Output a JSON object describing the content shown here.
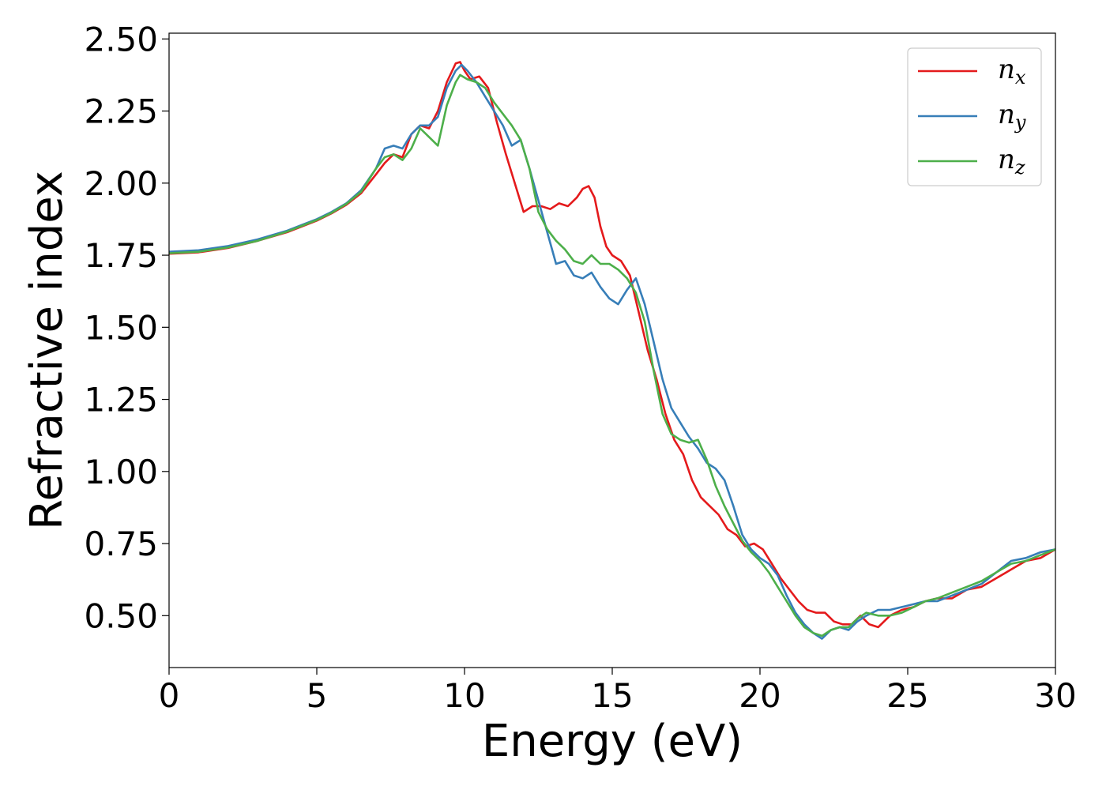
{
  "chart_data": {
    "type": "line",
    "xlabel": "Energy (eV)",
    "ylabel": "Refractive index",
    "xlim": [
      0,
      30
    ],
    "ylim": [
      0.32,
      2.52
    ],
    "xticks": [
      0,
      5,
      10,
      15,
      20,
      25,
      30
    ],
    "xtick_labels": [
      "0",
      "5",
      "10",
      "15",
      "20",
      "25",
      "30"
    ],
    "yticks": [
      0.5,
      0.75,
      1.0,
      1.25,
      1.5,
      1.75,
      2.0,
      2.25,
      2.5
    ],
    "ytick_labels": [
      "0.50",
      "0.75",
      "1.00",
      "1.25",
      "1.50",
      "1.75",
      "2.00",
      "2.25",
      "2.50"
    ],
    "grid": false,
    "legend_position": "top-right",
    "series": [
      {
        "name": "n_x",
        "legend_base": "n",
        "legend_sub": "x",
        "color": "#e41a1c",
        "x": [
          0,
          1,
          2,
          3,
          4,
          5,
          5.5,
          6,
          6.5,
          7,
          7.3,
          7.6,
          7.9,
          8.2,
          8.5,
          8.8,
          9.1,
          9.4,
          9.7,
          9.85,
          10.0,
          10.2,
          10.5,
          10.8,
          11.1,
          11.4,
          11.7,
          12.0,
          12.3,
          12.6,
          12.9,
          13.2,
          13.5,
          13.8,
          14.0,
          14.2,
          14.4,
          14.6,
          14.8,
          15.0,
          15.3,
          15.6,
          15.9,
          16.2,
          16.5,
          16.8,
          17.1,
          17.4,
          17.7,
          18.0,
          18.3,
          18.6,
          18.9,
          19.2,
          19.5,
          19.8,
          20.1,
          20.4,
          20.7,
          21.0,
          21.3,
          21.6,
          21.9,
          22.2,
          22.5,
          22.8,
          23.1,
          23.4,
          23.7,
          24.0,
          24.4,
          24.8,
          25.2,
          25.6,
          26.0,
          26.5,
          27.0,
          27.5,
          28.0,
          28.5,
          29.0,
          29.5,
          30.0
        ],
        "y": [
          1.755,
          1.76,
          1.775,
          1.8,
          1.83,
          1.87,
          1.895,
          1.925,
          1.965,
          2.03,
          2.07,
          2.1,
          2.09,
          2.17,
          2.2,
          2.19,
          2.25,
          2.35,
          2.415,
          2.42,
          2.39,
          2.36,
          2.37,
          2.33,
          2.21,
          2.1,
          2.0,
          1.9,
          1.92,
          1.92,
          1.91,
          1.93,
          1.92,
          1.95,
          1.98,
          1.99,
          1.95,
          1.85,
          1.78,
          1.75,
          1.73,
          1.68,
          1.55,
          1.42,
          1.32,
          1.2,
          1.11,
          1.06,
          0.97,
          0.91,
          0.88,
          0.85,
          0.8,
          0.78,
          0.74,
          0.75,
          0.73,
          0.68,
          0.63,
          0.59,
          0.55,
          0.52,
          0.51,
          0.51,
          0.48,
          0.47,
          0.47,
          0.5,
          0.47,
          0.46,
          0.5,
          0.52,
          0.53,
          0.55,
          0.56,
          0.56,
          0.59,
          0.6,
          0.63,
          0.66,
          0.69,
          0.7,
          0.73
        ]
      },
      {
        "name": "n_y",
        "legend_base": "n",
        "legend_sub": "y",
        "color": "#377eb8",
        "x": [
          0,
          1,
          2,
          3,
          4,
          5,
          5.5,
          6,
          6.5,
          7,
          7.3,
          7.6,
          7.9,
          8.2,
          8.5,
          8.8,
          9.1,
          9.4,
          9.7,
          9.9,
          10.1,
          10.4,
          10.7,
          11.0,
          11.3,
          11.6,
          11.9,
          12.2,
          12.5,
          12.8,
          13.1,
          13.4,
          13.7,
          14.0,
          14.3,
          14.6,
          14.9,
          15.2,
          15.5,
          15.8,
          16.1,
          16.4,
          16.7,
          17.0,
          17.3,
          17.6,
          17.9,
          18.2,
          18.5,
          18.8,
          19.1,
          19.4,
          19.7,
          20.0,
          20.3,
          20.6,
          20.9,
          21.2,
          21.5,
          21.8,
          22.1,
          22.4,
          22.7,
          23.0,
          23.3,
          23.6,
          24.0,
          24.4,
          24.8,
          25.2,
          25.6,
          26.0,
          26.5,
          27.0,
          27.5,
          28.0,
          28.5,
          29.0,
          29.5,
          30.0
        ],
        "y": [
          1.762,
          1.767,
          1.782,
          1.805,
          1.835,
          1.875,
          1.9,
          1.93,
          1.975,
          2.05,
          2.12,
          2.13,
          2.12,
          2.17,
          2.2,
          2.2,
          2.23,
          2.33,
          2.39,
          2.41,
          2.39,
          2.35,
          2.3,
          2.25,
          2.2,
          2.13,
          2.15,
          2.05,
          1.94,
          1.83,
          1.72,
          1.73,
          1.68,
          1.67,
          1.69,
          1.64,
          1.6,
          1.58,
          1.63,
          1.67,
          1.58,
          1.45,
          1.32,
          1.22,
          1.17,
          1.12,
          1.08,
          1.03,
          1.01,
          0.97,
          0.88,
          0.78,
          0.73,
          0.7,
          0.68,
          0.64,
          0.57,
          0.51,
          0.47,
          0.44,
          0.42,
          0.45,
          0.46,
          0.45,
          0.48,
          0.5,
          0.52,
          0.52,
          0.53,
          0.54,
          0.55,
          0.55,
          0.57,
          0.59,
          0.61,
          0.65,
          0.69,
          0.7,
          0.72,
          0.73
        ]
      },
      {
        "name": "n_z",
        "legend_base": "n",
        "legend_sub": "z",
        "color": "#4daf4a",
        "x": [
          0,
          1,
          2,
          3,
          4,
          5,
          5.5,
          6,
          6.5,
          7,
          7.3,
          7.6,
          7.9,
          8.2,
          8.5,
          8.8,
          9.1,
          9.4,
          9.7,
          9.85,
          10.1,
          10.4,
          10.7,
          11.0,
          11.3,
          11.6,
          11.9,
          12.2,
          12.5,
          12.8,
          13.1,
          13.4,
          13.7,
          14.0,
          14.3,
          14.6,
          14.9,
          15.2,
          15.5,
          15.8,
          16.1,
          16.4,
          16.7,
          17.0,
          17.3,
          17.6,
          17.9,
          18.2,
          18.5,
          18.8,
          19.1,
          19.4,
          19.7,
          20.0,
          20.3,
          20.6,
          20.9,
          21.2,
          21.5,
          21.8,
          22.1,
          22.4,
          22.7,
          23.0,
          23.3,
          23.6,
          24.0,
          24.4,
          24.8,
          25.2,
          25.6,
          26.0,
          26.5,
          27.0,
          27.5,
          28.0,
          28.5,
          29.0,
          29.5,
          30.0
        ],
        "y": [
          1.757,
          1.762,
          1.777,
          1.8,
          1.832,
          1.872,
          1.897,
          1.928,
          1.97,
          2.05,
          2.09,
          2.1,
          2.08,
          2.12,
          2.19,
          2.16,
          2.13,
          2.27,
          2.35,
          2.375,
          2.36,
          2.35,
          2.33,
          2.28,
          2.24,
          2.2,
          2.15,
          2.05,
          1.9,
          1.84,
          1.8,
          1.77,
          1.73,
          1.72,
          1.75,
          1.72,
          1.72,
          1.7,
          1.67,
          1.62,
          1.52,
          1.35,
          1.2,
          1.13,
          1.11,
          1.1,
          1.11,
          1.04,
          0.95,
          0.88,
          0.82,
          0.76,
          0.72,
          0.69,
          0.65,
          0.6,
          0.55,
          0.5,
          0.46,
          0.44,
          0.43,
          0.45,
          0.46,
          0.46,
          0.49,
          0.51,
          0.5,
          0.5,
          0.51,
          0.53,
          0.55,
          0.56,
          0.58,
          0.6,
          0.62,
          0.65,
          0.68,
          0.69,
          0.71,
          0.73
        ]
      }
    ]
  }
}
